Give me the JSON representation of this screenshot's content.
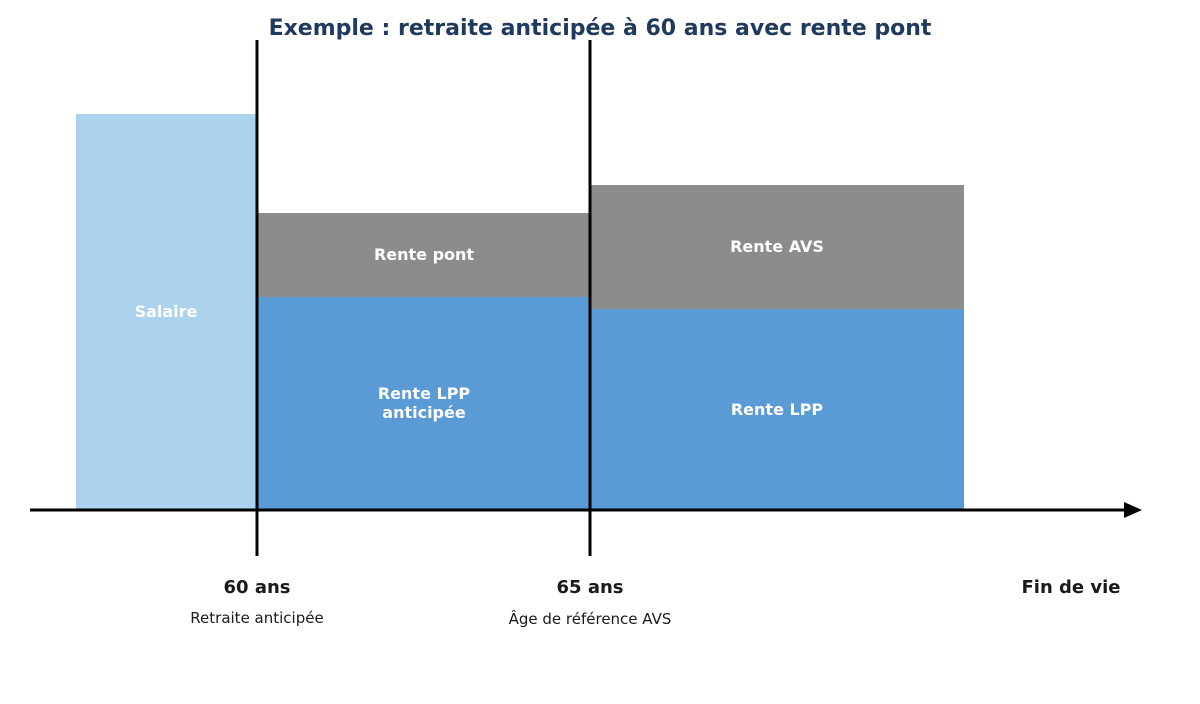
{
  "title": "Exemple : retraite anticipée à 60 ans avec rente pont",
  "colors": {
    "title": "#1f3a5c",
    "salary": "#abd3ed",
    "lpp": "#5a9ad5",
    "grey": "#8c8c8c",
    "axis": "#000000"
  },
  "segments": {
    "salaire": "Salaire",
    "rente_pont": "Rente pont",
    "rente_lpp_anticipee_line1": "Rente LPP",
    "rente_lpp_anticipee_line2": "anticipée",
    "rente_avs": "Rente AVS",
    "rente_lpp": "Rente LPP"
  },
  "markers": {
    "age_60": "60 ans",
    "age_60_sub": "Retraite anticipée",
    "age_65": "65 ans",
    "age_65_sub": "Âge de référence AVS",
    "end": "Fin de vie"
  }
}
